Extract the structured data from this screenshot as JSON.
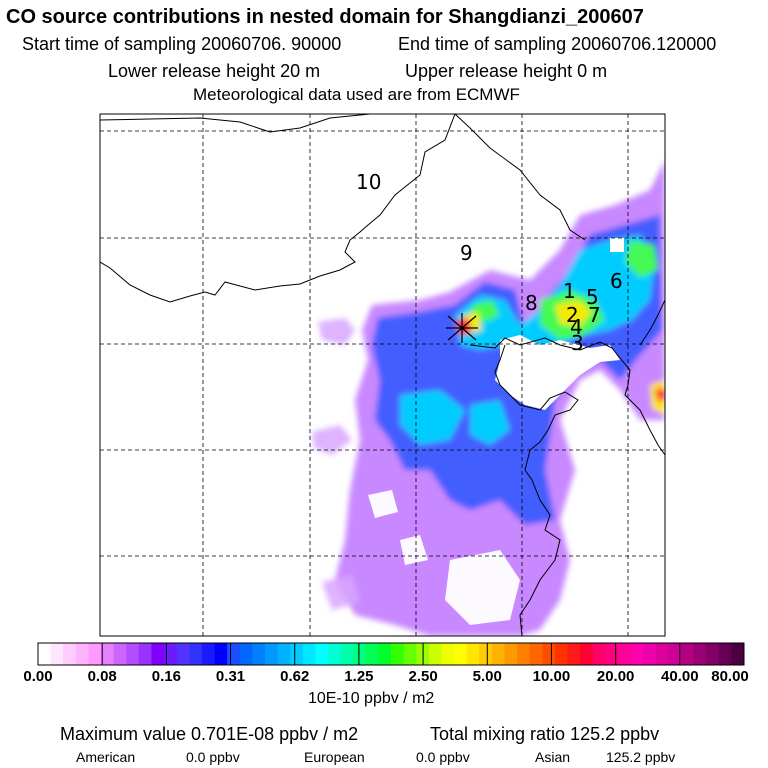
{
  "header": {
    "title": "CO  source contributions in nested domain for Shangdianzi_200607",
    "start_time": "Start time of sampling 20060706. 90000",
    "end_time": "End time of sampling 20060706.120000",
    "lower_height": "Lower release height   20 m",
    "upper_height": "Upper release height    0 m",
    "met_source": "Meteorological data used are from ECMWF"
  },
  "map": {
    "contour_labels": [
      "10",
      "9",
      "8",
      "1",
      "5",
      "6",
      "2",
      "7",
      "4",
      "3"
    ],
    "receptor_marker": "star"
  },
  "colorbar": {
    "ticks": [
      "0.00",
      "0.08",
      "0.16",
      "0.31",
      "0.62",
      "1.25",
      "2.50",
      "5.00",
      "10.00",
      "20.00",
      "40.00",
      "80.00"
    ],
    "unit": "10E-10 ppbv / m2",
    "colors": [
      "#ffffff",
      "#ffe6ff",
      "#ffccff",
      "#ffb3ff",
      "#ff99ff",
      "#e580ff",
      "#cc66ff",
      "#b34dff",
      "#9933ff",
      "#8000ff",
      "#6a1aff",
      "#5533ff",
      "#3333ff",
      "#1a1aff",
      "#0000ff",
      "#1a4dff",
      "#0066ff",
      "#0080ff",
      "#0099ff",
      "#00b3ff",
      "#00ccff",
      "#00e6ff",
      "#00ffff",
      "#00ffd5",
      "#00ffaa",
      "#00ff80",
      "#00ff55",
      "#00ff2a",
      "#33ff00",
      "#66ff00",
      "#99ff00",
      "#ccff00",
      "#eeff00",
      "#ffff00",
      "#ffe600",
      "#ffcc00",
      "#ffb300",
      "#ff9900",
      "#ff8000",
      "#ff6600",
      "#ff4d00",
      "#ff3300",
      "#ff1a1a",
      "#ff0033",
      "#ff0066",
      "#ff0080",
      "#ff0099",
      "#ff00aa",
      "#ee00aa",
      "#dd0099",
      "#cc0099",
      "#b30080",
      "#990073",
      "#800066",
      "#660055",
      "#4d0040"
    ]
  },
  "summary": {
    "max_value": "Maximum value  0.701E-08 ppbv / m2",
    "total_mixing": "Total mixing ratio     125.2 ppbv"
  },
  "regions": [
    {
      "name": "American",
      "value": "0.0 ppbv"
    },
    {
      "name": "European",
      "value": "0.0 ppbv"
    },
    {
      "name": "Asian",
      "value": "125.2 ppbv"
    }
  ]
}
